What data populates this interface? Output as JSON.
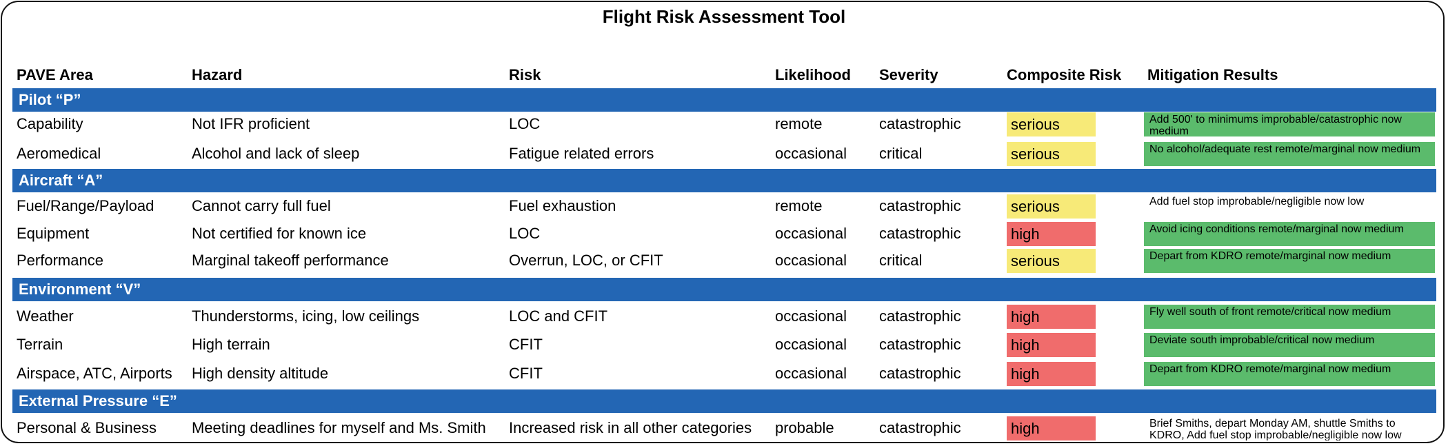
{
  "title": "Flight Risk Assessment Tool",
  "columns": [
    "PAVE Area",
    "Hazard",
    "Risk",
    "Likelihood",
    "Severity",
    "Composite Risk",
    "Mitigation Results"
  ],
  "colors": {
    "band": "#2366b4",
    "serious": "#f7ea78",
    "high": "#f06c6c",
    "mitigated": "#5bbb6c"
  },
  "sections": [
    {
      "label": "Pilot “P”",
      "rows": [
        {
          "area": "Capability",
          "hazard": "Not IFR proficient",
          "risk": "LOC",
          "likelihood": "remote",
          "severity": "catastrophic",
          "composite": "serious",
          "mitigation": "Add 500' to minimums improbable/catastrophic now medium",
          "mitigation_highlighted": true
        },
        {
          "area": "Aeromedical",
          "hazard": "Alcohol and lack of sleep",
          "risk": "Fatigue related errors",
          "likelihood": "occasional",
          "severity": "critical",
          "composite": "serious",
          "mitigation": "No alcohol/adequate rest remote/marginal now medium",
          "mitigation_highlighted": true
        }
      ]
    },
    {
      "label": "Aircraft “A”",
      "rows": [
        {
          "area": "Fuel/Range/Payload",
          "hazard": "Cannot carry full fuel",
          "risk": "Fuel exhaustion",
          "likelihood": "remote",
          "severity": "catastrophic",
          "composite": "serious",
          "mitigation": "Add fuel stop improbable/negligible now low",
          "mitigation_highlighted": false
        },
        {
          "area": "Equipment",
          "hazard": "Not certified for known ice",
          "risk": "LOC",
          "likelihood": "occasional",
          "severity": "catastrophic",
          "composite": "high",
          "mitigation": "Avoid icing conditions remote/marginal now medium",
          "mitigation_highlighted": true
        },
        {
          "area": "Performance",
          "hazard": "Marginal takeoff performance",
          "risk": "Overrun, LOC, or CFIT",
          "likelihood": "occasional",
          "severity": "critical",
          "composite": "serious",
          "mitigation": "Depart from KDRO remote/marginal now medium",
          "mitigation_highlighted": true
        }
      ]
    },
    {
      "label": "Environment “V”",
      "rows": [
        {
          "area": "Weather",
          "hazard": "Thunderstorms, icing, low ceilings",
          "risk": "LOC and CFIT",
          "likelihood": "occasional",
          "severity": "catastrophic",
          "composite": "high",
          "mitigation": "Fly well south of front remote/critical now medium",
          "mitigation_highlighted": true
        },
        {
          "area": "Terrain",
          "hazard": "High terrain",
          "risk": "CFIT",
          "likelihood": "occasional",
          "severity": "catastrophic",
          "composite": "high",
          "mitigation": "Deviate south improbable/critical now medium",
          "mitigation_highlighted": true
        },
        {
          "area": "Airspace, ATC, Airports",
          "hazard": "High density altitude",
          "risk": "CFIT",
          "likelihood": "occasional",
          "severity": "catastrophic",
          "composite": "high",
          "mitigation": "Depart from KDRO remote/marginal now medium",
          "mitigation_highlighted": true
        }
      ]
    },
    {
      "label": "External Pressure “E”",
      "rows": [
        {
          "area": "Personal & Business",
          "hazard": "Meeting deadlines for myself and Ms. Smith",
          "risk": "Increased risk in all other categories",
          "likelihood": "probable",
          "severity": "catastrophic",
          "composite": "high",
          "mitigation": "Brief Smiths, depart Monday AM, shuttle Smiths to KDRO, Add fuel stop improbable/negligible now low",
          "mitigation_highlighted": false
        }
      ]
    }
  ]
}
